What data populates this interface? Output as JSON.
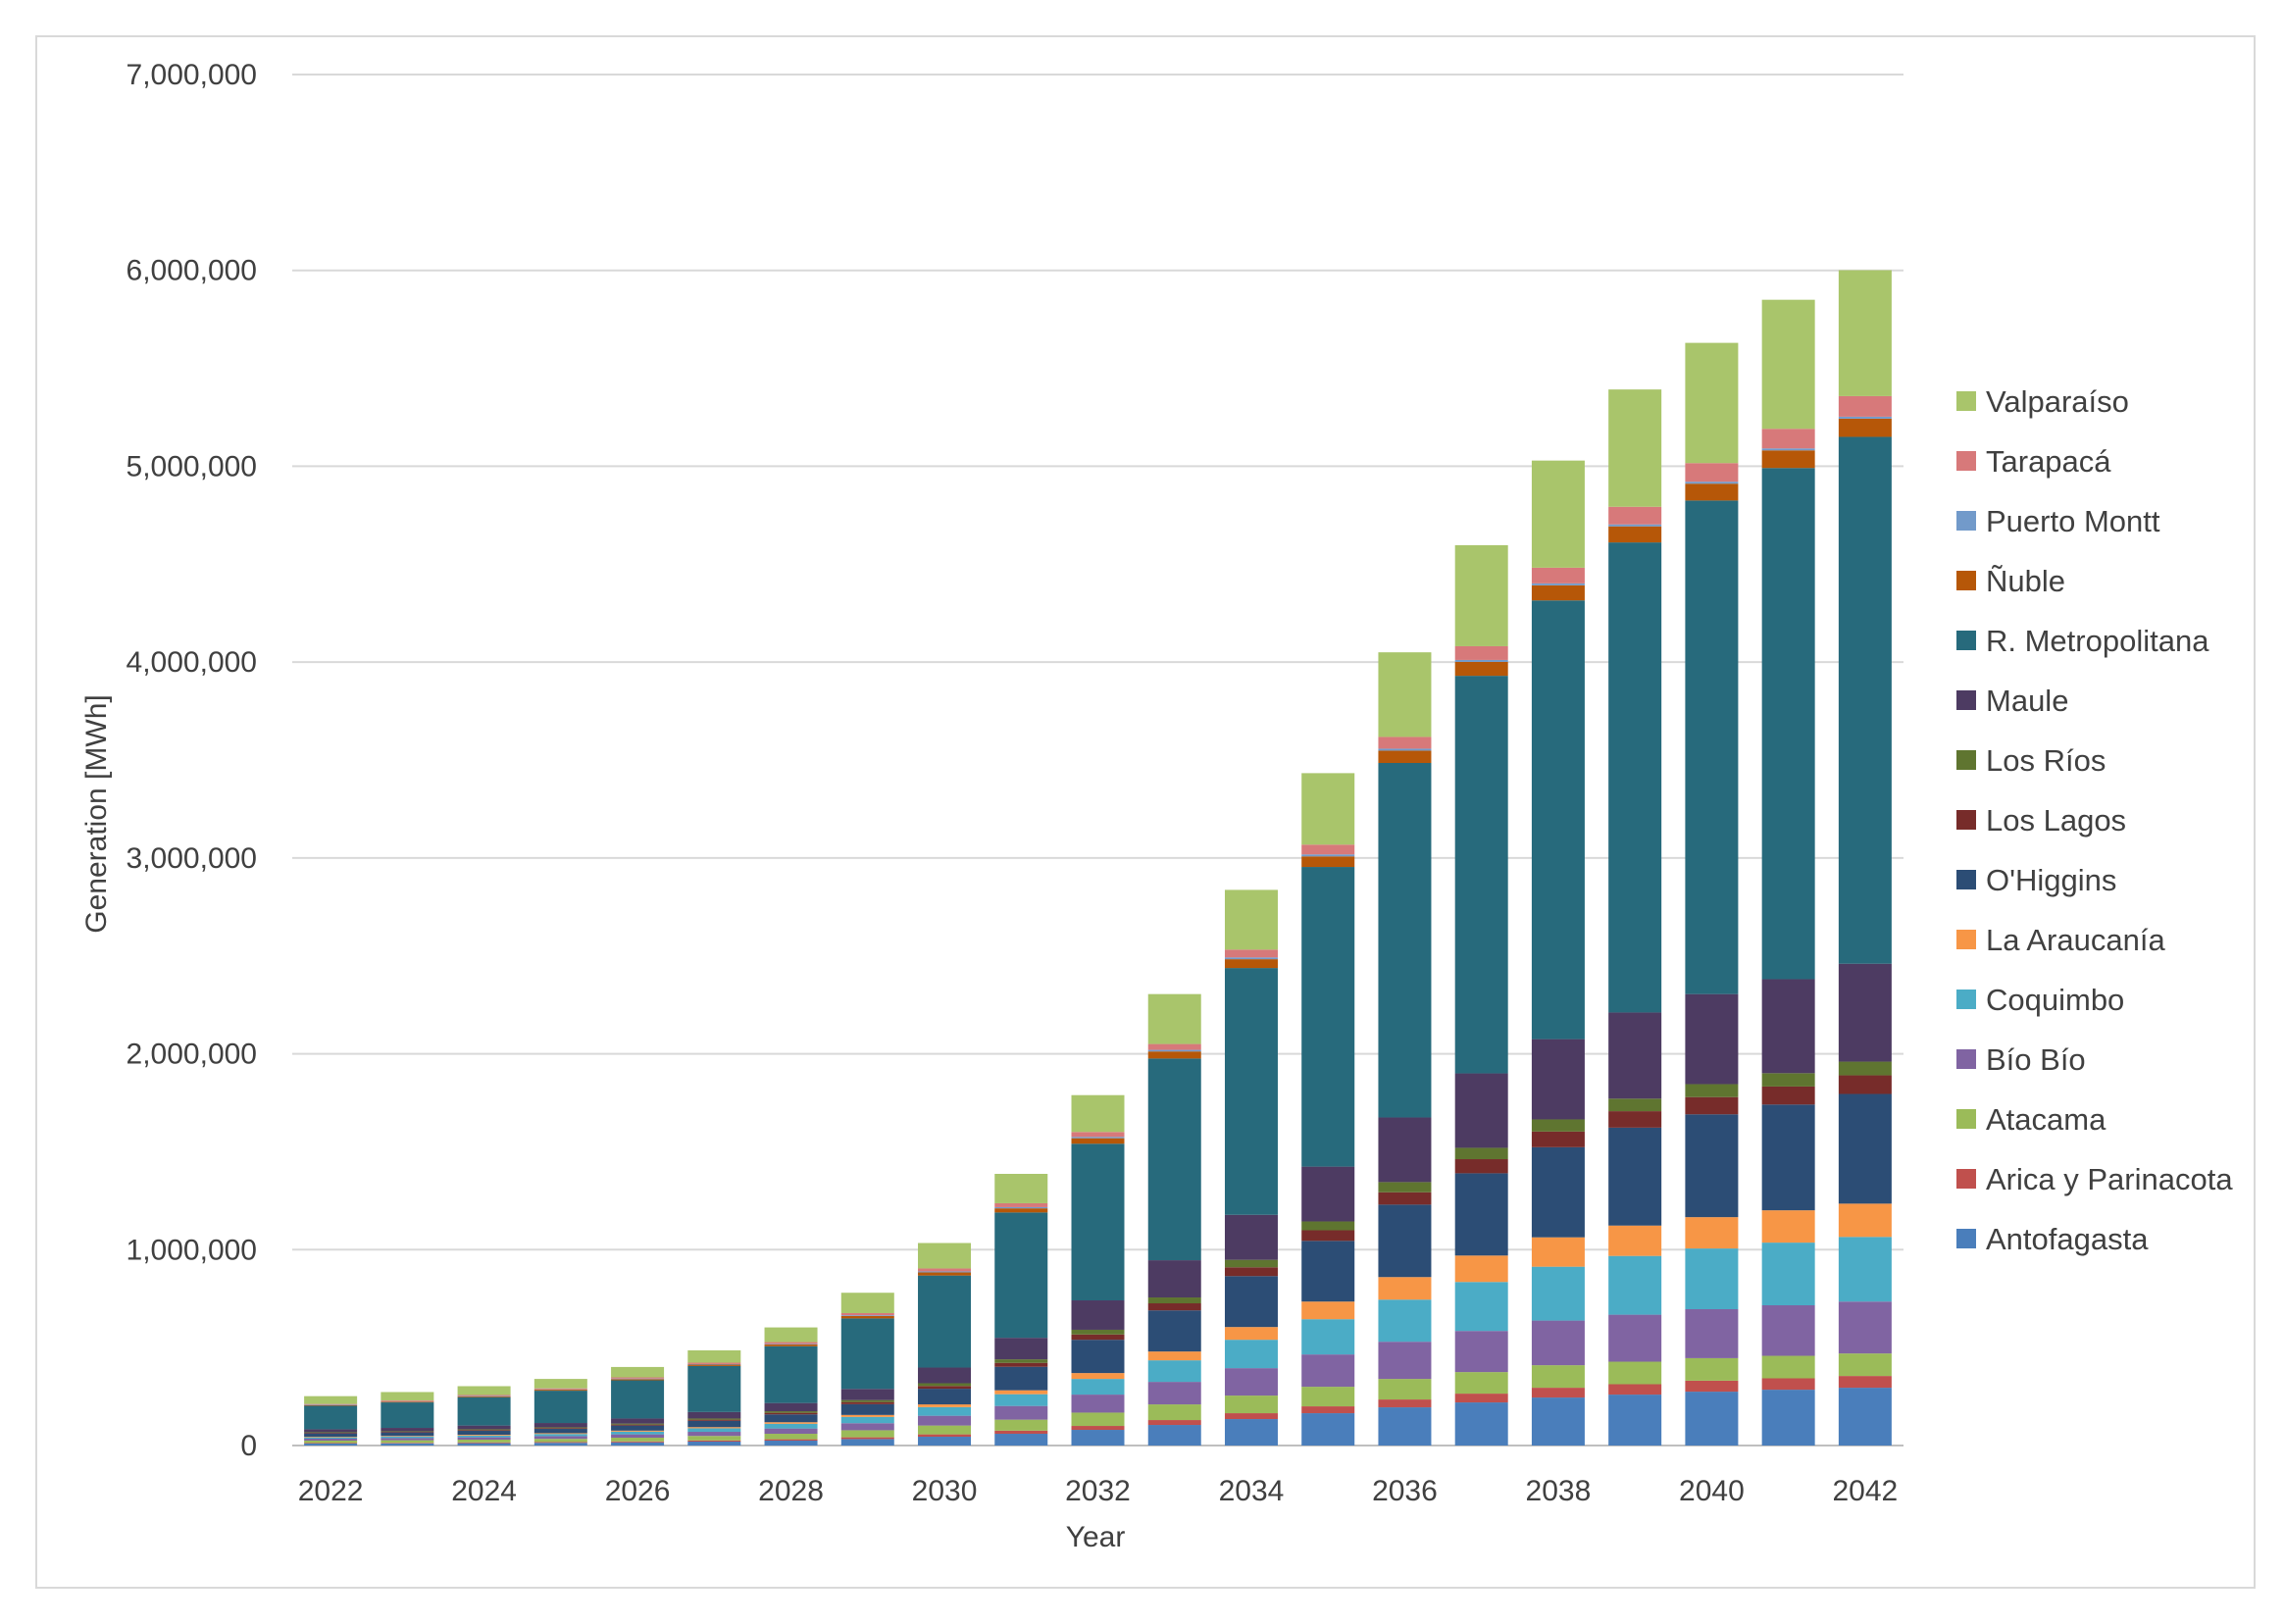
{
  "chart_data": {
    "type": "bar",
    "stacked": true,
    "title": "",
    "xlabel": "Year",
    "ylabel": "Generation [MWh]",
    "ylim": [
      0,
      7000000
    ],
    "yticks": [
      0,
      1000000,
      2000000,
      3000000,
      4000000,
      5000000,
      6000000,
      7000000
    ],
    "ytick_labels": [
      "0",
      "1,000,000",
      "2,000,000",
      "3,000,000",
      "4,000,000",
      "5,000,000",
      "6,000,000",
      "7,000,000"
    ],
    "x": [
      2022,
      2023,
      2024,
      2025,
      2026,
      2027,
      2028,
      2029,
      2030,
      2031,
      2032,
      2033,
      2034,
      2035,
      2036,
      2037,
      2038,
      2039,
      2040,
      2041,
      2042
    ],
    "xtick_labels": [
      "2022",
      "2024",
      "2026",
      "2028",
      "2030",
      "2032",
      "2034",
      "2036",
      "2038",
      "2040",
      "2042"
    ],
    "grid": true,
    "legend_position": "right",
    "series": [
      {
        "name": "Antofagasta",
        "color": "#4a7ebb",
        "values": [
          10000,
          11000,
          12000,
          14000,
          16000,
          20000,
          25000,
          33000,
          45000,
          60000,
          80000,
          105000,
          135000,
          165000,
          195000,
          220000,
          245000,
          260000,
          275000,
          285000,
          295000
        ]
      },
      {
        "name": "Arica y Parinacota",
        "color": "#c0504d",
        "values": [
          3000,
          3000,
          4000,
          4000,
          5000,
          6000,
          7000,
          9000,
          12000,
          16000,
          20000,
          25000,
          30000,
          35000,
          40000,
          45000,
          50000,
          53000,
          56000,
          58000,
          60000
        ]
      },
      {
        "name": "Atacama",
        "color": "#9bbb59",
        "values": [
          12000,
          13000,
          14000,
          16000,
          19000,
          23000,
          28000,
          36000,
          45000,
          56000,
          68000,
          80000,
          90000,
          100000,
          105000,
          110000,
          115000,
          115000,
          115000,
          115000,
          115000
        ]
      },
      {
        "name": "Bío Bío",
        "color": "#8064a2",
        "values": [
          10000,
          11000,
          12000,
          14000,
          17000,
          21000,
          27000,
          36000,
          50000,
          70000,
          92000,
          115000,
          140000,
          165000,
          190000,
          210000,
          228000,
          240000,
          250000,
          258000,
          265000
        ]
      },
      {
        "name": "Coquimbo",
        "color": "#4bacc6",
        "values": [
          7000,
          8000,
          9000,
          11000,
          14000,
          18000,
          24000,
          32000,
          44000,
          60000,
          80000,
          110000,
          145000,
          180000,
          215000,
          250000,
          275000,
          300000,
          310000,
          320000,
          330000
        ]
      },
      {
        "name": "La Araucanía",
        "color": "#f79646",
        "values": [
          3000,
          3000,
          4000,
          4000,
          5000,
          6000,
          8000,
          10000,
          14000,
          20000,
          30000,
          45000,
          65000,
          90000,
          115000,
          135000,
          150000,
          155000,
          160000,
          165000,
          170000
        ]
      },
      {
        "name": "O'Higgins",
        "color": "#2c4d75",
        "values": [
          17000,
          18000,
          20000,
          22000,
          26000,
          32000,
          40000,
          55000,
          80000,
          120000,
          170000,
          210000,
          260000,
          310000,
          370000,
          420000,
          460000,
          500000,
          525000,
          540000,
          560000
        ]
      },
      {
        "name": "Los Lagos",
        "color": "#772c2a",
        "values": [
          3000,
          3000,
          4000,
          4000,
          5000,
          6000,
          8000,
          11000,
          14000,
          20000,
          27000,
          36000,
          45000,
          54000,
          63000,
          72000,
          80000,
          84000,
          88000,
          92000,
          95000
        ]
      },
      {
        "name": "Los Ríos",
        "color": "#5f7530",
        "values": [
          3000,
          3000,
          4000,
          4000,
          5000,
          6000,
          8000,
          10000,
          14000,
          18000,
          24000,
          30000,
          38000,
          45000,
          52000,
          58000,
          62000,
          64000,
          66000,
          68000,
          70000
        ]
      },
      {
        "name": "Maule",
        "color": "#4d3b62",
        "values": [
          15000,
          17000,
          19000,
          22000,
          26000,
          33000,
          42000,
          57000,
          80000,
          110000,
          150000,
          190000,
          230000,
          280000,
          330000,
          380000,
          410000,
          440000,
          460000,
          480000,
          500000
        ]
      },
      {
        "name": "R. Metropolitana",
        "color": "#276a7c",
        "values": [
          120000,
          130000,
          145000,
          165000,
          195000,
          235000,
          290000,
          360000,
          470000,
          640000,
          800000,
          1030000,
          1260000,
          1530000,
          1810000,
          2030000,
          2240000,
          2400000,
          2520000,
          2610000,
          2690000
        ]
      },
      {
        "name": "Ñuble",
        "color": "#b65708",
        "values": [
          3000,
          4000,
          4000,
          5000,
          6000,
          7000,
          9000,
          12000,
          16000,
          21000,
          28000,
          36000,
          45000,
          54000,
          63000,
          71000,
          77000,
          82000,
          86000,
          90000,
          93000
        ]
      },
      {
        "name": "Puerto Montt",
        "color": "#729aca",
        "values": [
          2000,
          2000,
          2000,
          2000,
          3000,
          3000,
          3000,
          4000,
          5000,
          6000,
          7000,
          8000,
          9000,
          10000,
          10000,
          10000,
          10000,
          10000,
          10000,
          10000,
          10000
        ]
      },
      {
        "name": "Tarapacá",
        "color": "#d7797a",
        "values": [
          4000,
          4000,
          5000,
          5000,
          6000,
          7000,
          9000,
          11000,
          15000,
          20000,
          25000,
          30000,
          40000,
          50000,
          60000,
          70000,
          80000,
          90000,
          95000,
          100000,
          105000
        ]
      },
      {
        "name": "Valparaíso",
        "color": "#a9c56b",
        "values": [
          40000,
          43000,
          45000,
          48000,
          53000,
          63000,
          75000,
          104000,
          130000,
          150000,
          188000,
          255000,
          305000,
          365000,
          432000,
          516000,
          547000,
          599000,
          614000,
          659000,
          643000
        ]
      }
    ]
  }
}
